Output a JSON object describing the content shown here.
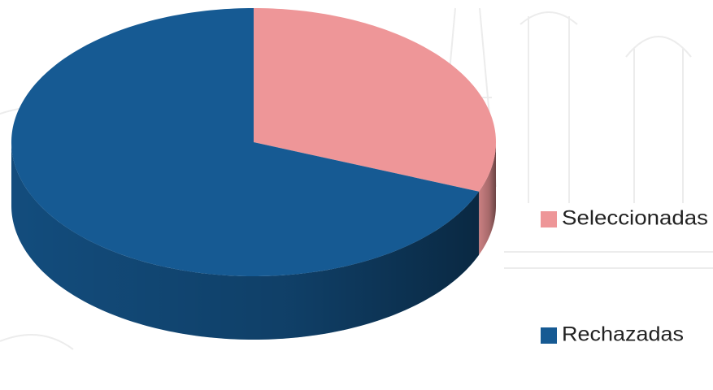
{
  "chart_data": {
    "type": "pie",
    "categories": [
      "Seleccionadas",
      "Rechazadas"
    ],
    "values": [
      31,
      69
    ],
    "colors": [
      "#ee9698",
      "#165a93"
    ],
    "legend": "right"
  }
}
